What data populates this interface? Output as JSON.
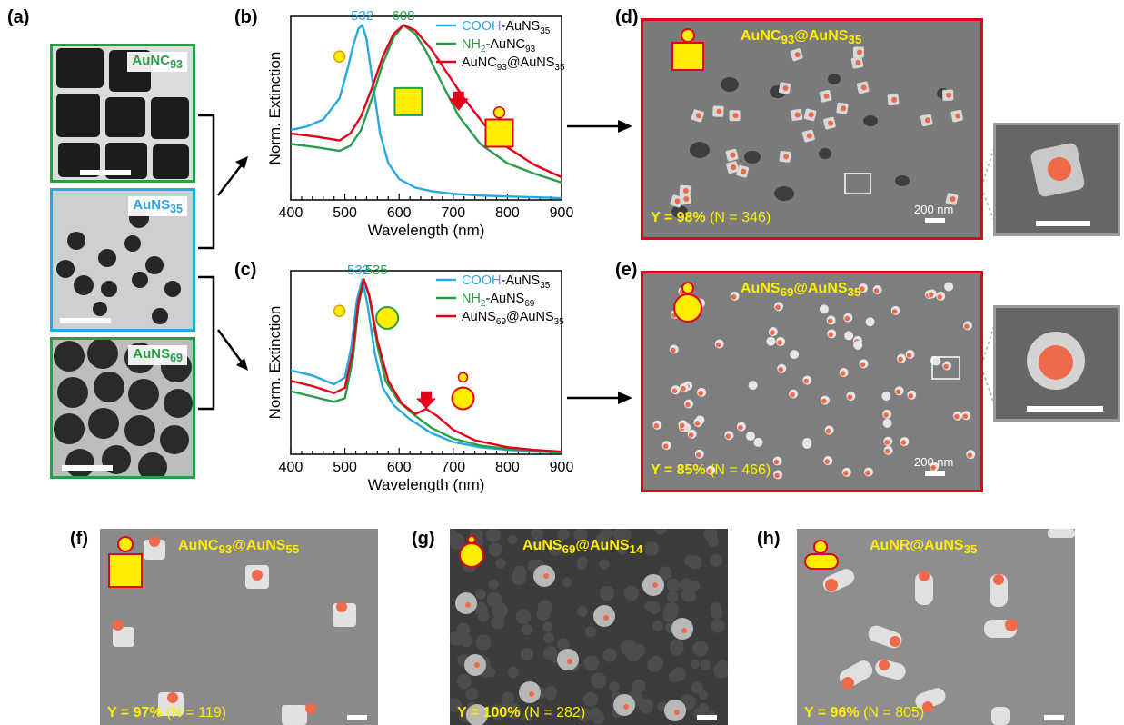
{
  "panels": {
    "a": "(a)",
    "b": "(b)",
    "c": "(c)",
    "d": "(d)",
    "e": "(e)",
    "f": "(f)",
    "g": "(g)",
    "h": "(h)"
  },
  "tem": {
    "top": {
      "label_base": "AuNC",
      "label_sub": "93",
      "border": "#2a9d4a"
    },
    "mid": {
      "label_base": "AuNS",
      "label_sub": "35",
      "border": "#29a8e0"
    },
    "bot": {
      "label_base": "AuNS",
      "label_sub": "69",
      "border": "#2a9d4a"
    }
  },
  "colors": {
    "cooh": "#29a8e0",
    "nh2": "#2a9d4a",
    "hybrid": "#e3001b",
    "yellow": "#ffee00",
    "dot": "#ef6a4a"
  },
  "chart_data": [
    {
      "type": "line",
      "panel": "b",
      "xlabel": "Wavelength (nm)",
      "ylabel": "Norm. Extinction",
      "xlim": [
        400,
        900
      ],
      "xticks": [
        "400",
        "500",
        "600",
        "700",
        "800",
        "900"
      ],
      "ylim": [
        0,
        1.05
      ],
      "peak_labels": [
        {
          "text": "532",
          "x": 532,
          "color": "#29a8e0"
        },
        {
          "text": "608",
          "x": 608,
          "color": "#2a9d4a"
        }
      ],
      "legend": [
        {
          "pre": "COOH",
          "base": "-AuNS",
          "sub": "35",
          "color": "#29a8e0"
        },
        {
          "pre": "NH",
          "pre_sub": "2",
          "base": "-AuNC",
          "sub": "93",
          "color": "#2a9d4a"
        },
        {
          "base": "AuNC",
          "sub": "93",
          "mid": "@AuNS",
          "sub2": "35",
          "color": "#e3001b"
        }
      ],
      "series": [
        {
          "name": "COOH-AuNS35",
          "color": "#29a8e0",
          "x": [
            400,
            430,
            460,
            490,
            505,
            515,
            525,
            532,
            540,
            550,
            565,
            580,
            600,
            630,
            660,
            700,
            750,
            800,
            850,
            900
          ],
          "y": [
            0.4,
            0.42,
            0.46,
            0.58,
            0.75,
            0.88,
            0.98,
            1.0,
            0.92,
            0.7,
            0.38,
            0.21,
            0.12,
            0.07,
            0.05,
            0.035,
            0.025,
            0.02,
            0.015,
            0.01
          ]
        },
        {
          "name": "NH2-AuNC93",
          "color": "#2a9d4a",
          "x": [
            400,
            450,
            490,
            510,
            530,
            550,
            570,
            590,
            608,
            630,
            650,
            680,
            710,
            750,
            800,
            850,
            900
          ],
          "y": [
            0.32,
            0.3,
            0.28,
            0.31,
            0.4,
            0.58,
            0.78,
            0.93,
            1.0,
            0.95,
            0.85,
            0.66,
            0.48,
            0.32,
            0.21,
            0.15,
            0.1
          ]
        },
        {
          "name": "AuNC93@AuNS35",
          "color": "#e3001b",
          "x": [
            400,
            450,
            490,
            510,
            530,
            550,
            570,
            590,
            608,
            630,
            660,
            690,
            720,
            760,
            800,
            850,
            900
          ],
          "y": [
            0.38,
            0.36,
            0.34,
            0.38,
            0.48,
            0.64,
            0.82,
            0.95,
            1.0,
            0.97,
            0.86,
            0.72,
            0.58,
            0.42,
            0.3,
            0.2,
            0.13
          ]
        }
      ]
    },
    {
      "type": "line",
      "panel": "c",
      "xlabel": "Wavelength (nm)",
      "ylabel": "Norm. Extinction",
      "xlim": [
        400,
        900
      ],
      "xticks": [
        "400",
        "500",
        "600",
        "700",
        "800",
        "900"
      ],
      "ylim": [
        0,
        1.05
      ],
      "peak_labels": [
        {
          "text": "532",
          "x": 525,
          "color": "#29a8e0"
        },
        {
          "text": "535",
          "x": 558,
          "color": "#2a9d4a"
        }
      ],
      "legend": [
        {
          "pre": "COOH",
          "base": "-AuNS",
          "sub": "35",
          "color": "#29a8e0"
        },
        {
          "pre": "NH",
          "pre_sub": "2",
          "base": "-AuNS",
          "sub": "69",
          "color": "#2a9d4a"
        },
        {
          "base": "AuNS",
          "sub": "69",
          "mid": "@AuNS",
          "sub2": "35",
          "color": "#e3001b"
        }
      ],
      "series": [
        {
          "name": "COOH-AuNS35",
          "color": "#29a8e0",
          "x": [
            400,
            440,
            480,
            500,
            512,
            522,
            532,
            542,
            555,
            570,
            590,
            620,
            660,
            700,
            750,
            800,
            850,
            900
          ],
          "y": [
            0.48,
            0.45,
            0.4,
            0.44,
            0.62,
            0.88,
            1.0,
            0.85,
            0.58,
            0.38,
            0.28,
            0.2,
            0.12,
            0.07,
            0.04,
            0.025,
            0.015,
            0.01
          ]
        },
        {
          "name": "NH2-AuNS69",
          "color": "#2a9d4a",
          "x": [
            400,
            440,
            480,
            500,
            515,
            525,
            535,
            545,
            560,
            575,
            600,
            630,
            660,
            700,
            750,
            800,
            850,
            900
          ],
          "y": [
            0.36,
            0.33,
            0.3,
            0.32,
            0.55,
            0.85,
            1.0,
            0.9,
            0.62,
            0.42,
            0.3,
            0.22,
            0.15,
            0.09,
            0.05,
            0.03,
            0.02,
            0.01
          ]
        },
        {
          "name": "AuNS69@AuNS35",
          "color": "#e3001b",
          "x": [
            400,
            440,
            480,
            500,
            515,
            525,
            535,
            545,
            560,
            580,
            605,
            630,
            650,
            670,
            700,
            740,
            800,
            850,
            900
          ],
          "y": [
            0.42,
            0.39,
            0.35,
            0.38,
            0.6,
            0.88,
            1.0,
            0.91,
            0.65,
            0.42,
            0.29,
            0.23,
            0.26,
            0.22,
            0.14,
            0.08,
            0.04,
            0.025,
            0.015
          ]
        }
      ]
    }
  ],
  "sem": {
    "d": {
      "title_base": "AuNC",
      "title_sub": "93",
      "title_mid": "@AuNS",
      "title_sub2": "35",
      "yield": "Y = 98%",
      "n": "(N = 346)",
      "scale": "200 nm"
    },
    "e": {
      "title_base": "AuNS",
      "title_sub": "69",
      "title_mid": "@AuNS",
      "title_sub2": "35",
      "yield": "Y = 85%",
      "n": "(N = 466)",
      "scale": "200 nm"
    },
    "f": {
      "title_base": "AuNC",
      "title_sub": "93",
      "title_mid": "@AuNS",
      "title_sub2": "55",
      "yield": "Y = 97%",
      "n": "(N = 119)"
    },
    "g": {
      "title_base": "AuNS",
      "title_sub": "69",
      "title_mid": "@AuNS",
      "title_sub2": "14",
      "yield": "Y = 100%",
      "n": "(N = 282)"
    },
    "h": {
      "title_base": "AuNR",
      "title_sub": "",
      "title_mid": "@AuNS",
      "title_sub2": "35",
      "yield": "Y = 96%",
      "n": "(N = 805)"
    }
  }
}
